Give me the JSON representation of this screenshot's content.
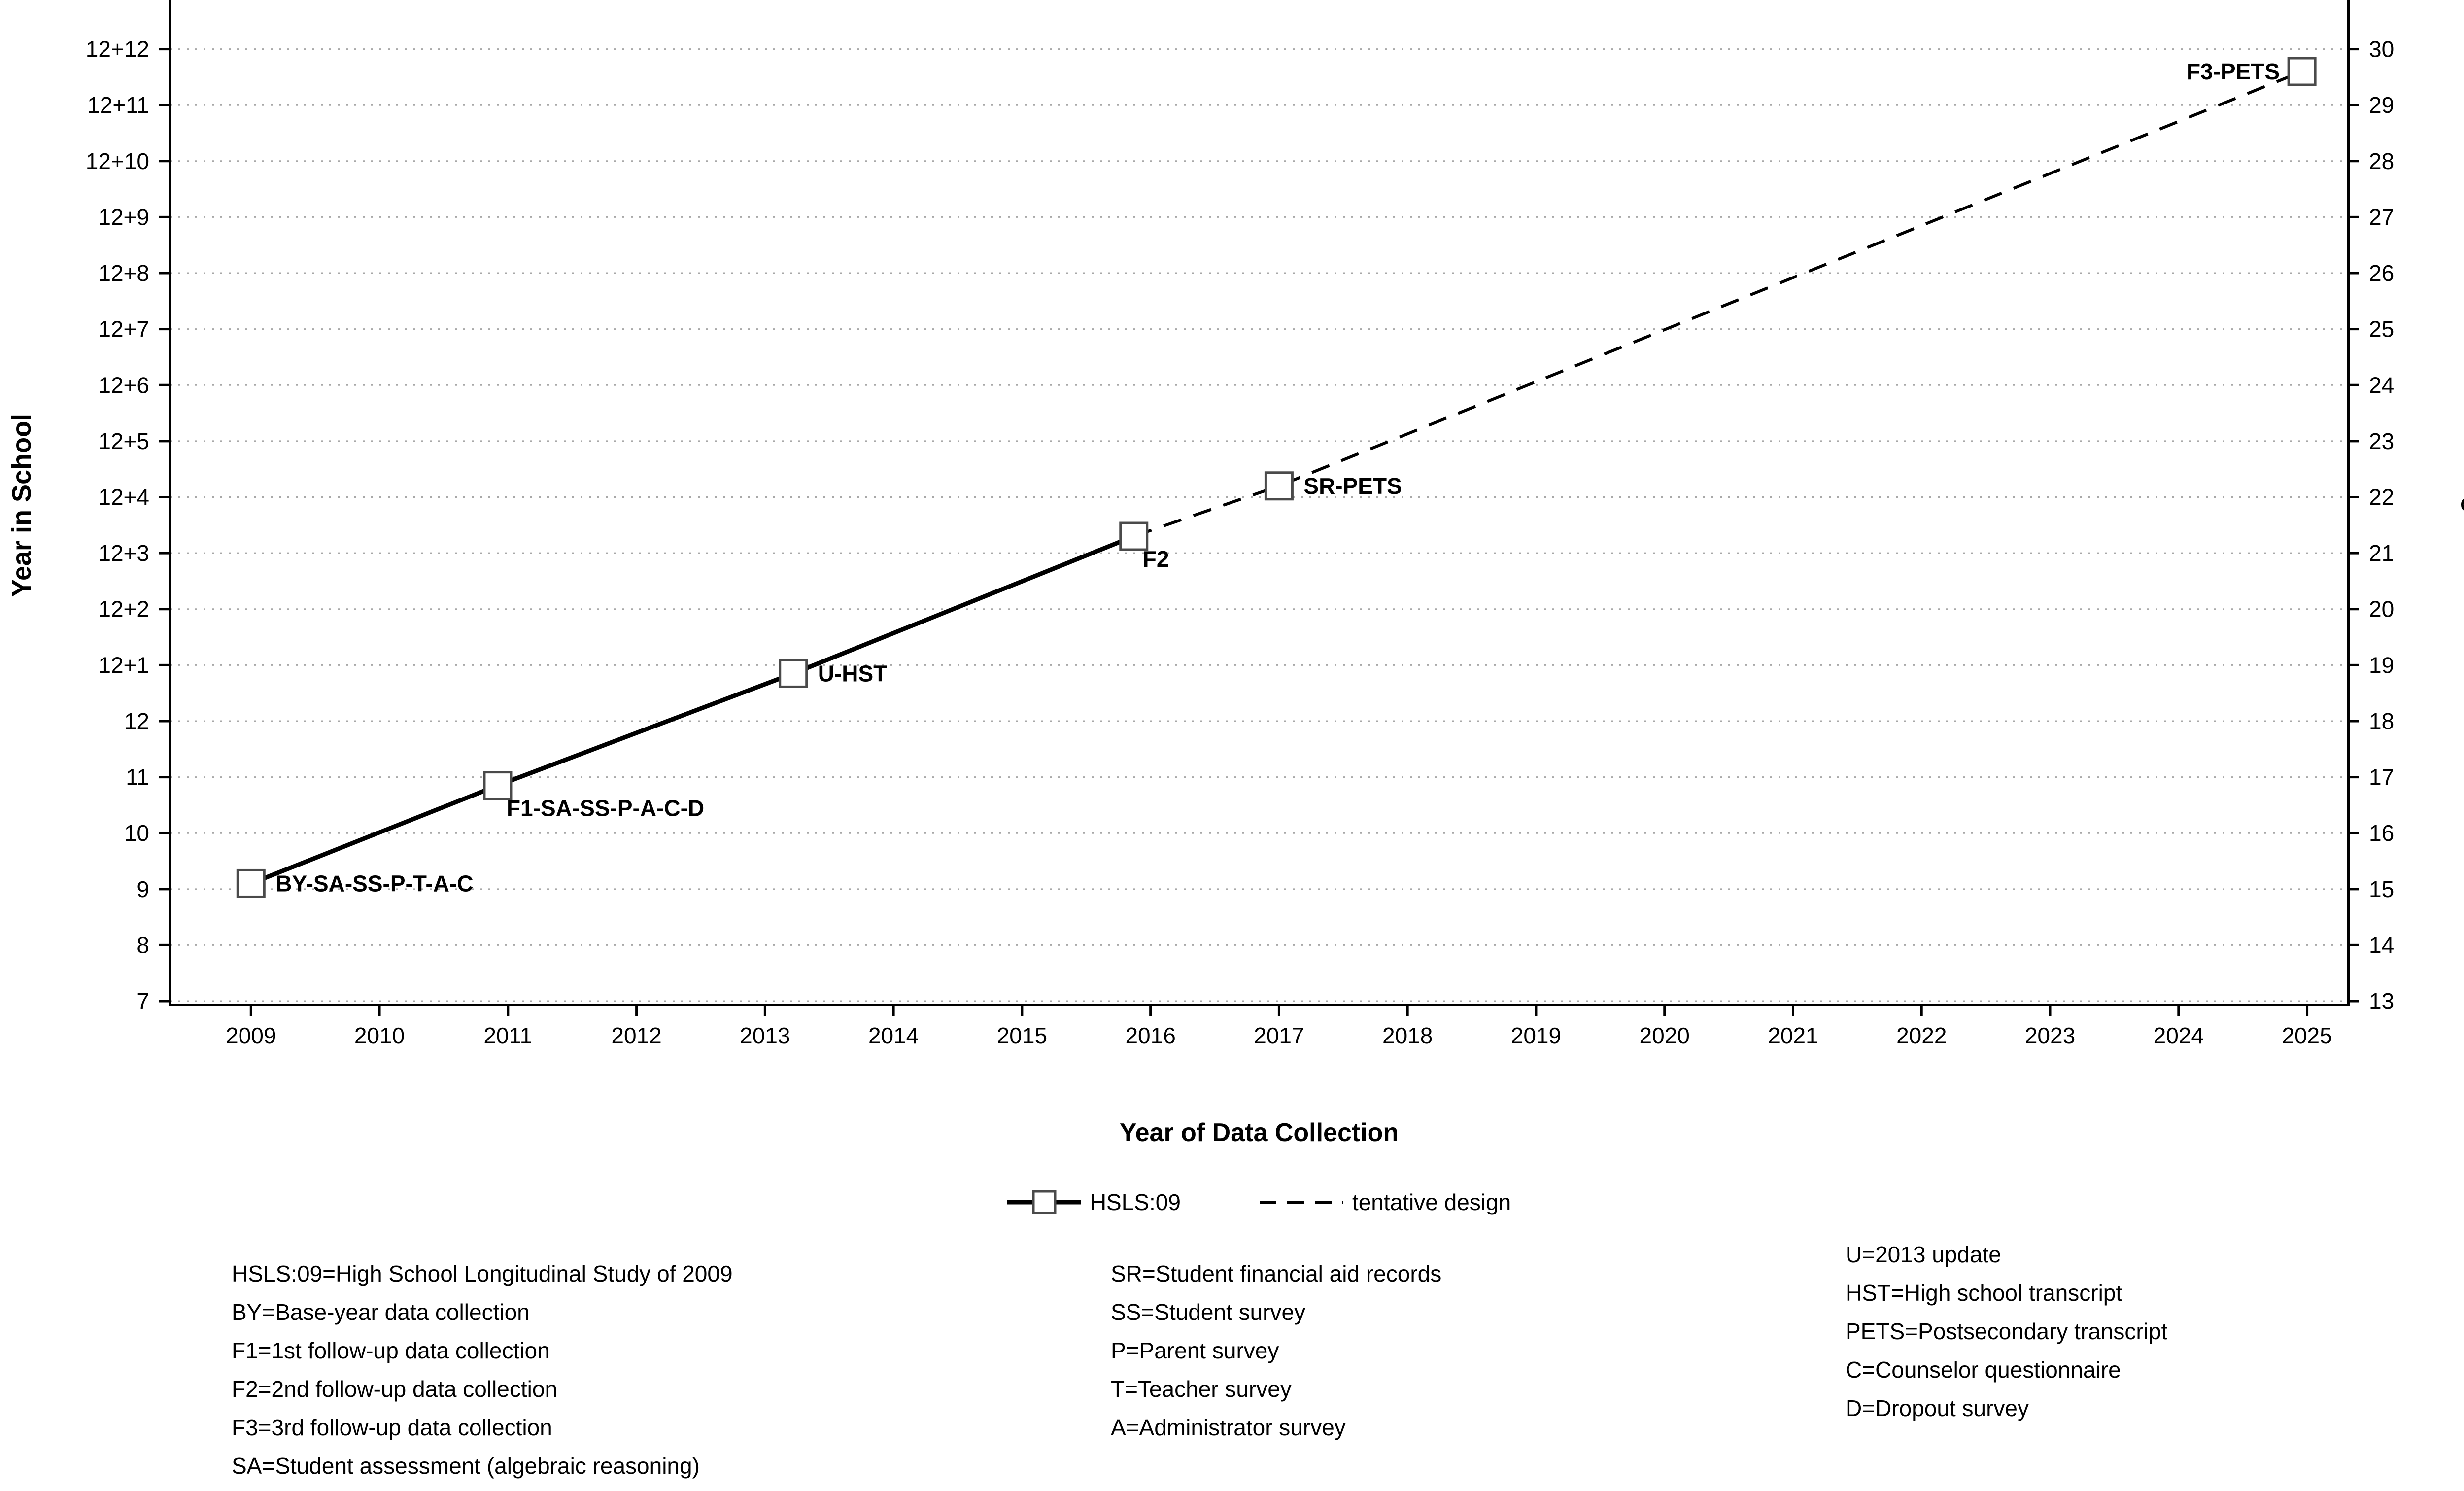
{
  "chart_data": {
    "type": "line",
    "title": "",
    "xlabel": "Year of Data Collection",
    "ylabel_left": "Year in School",
    "ylabel_right": "Age",
    "x_ticks": [
      2009,
      2010,
      2011,
      2012,
      2013,
      2014,
      2015,
      2016,
      2017,
      2018,
      2019,
      2020,
      2021,
      2022,
      2023,
      2024,
      2025
    ],
    "y_ticks": [
      {
        "value": 7,
        "left": "7",
        "right": "13"
      },
      {
        "value": 8,
        "left": "8",
        "right": "14"
      },
      {
        "value": 9,
        "left": "9",
        "right": "15"
      },
      {
        "value": 10,
        "left": "10",
        "right": "16"
      },
      {
        "value": 11,
        "left": "11",
        "right": "17"
      },
      {
        "value": 12,
        "left": "12",
        "right": "18"
      },
      {
        "value": 13,
        "left": "12+1",
        "right": "19"
      },
      {
        "value": 14,
        "left": "12+2",
        "right": "20"
      },
      {
        "value": 15,
        "left": "12+3",
        "right": "21"
      },
      {
        "value": 16,
        "left": "12+4",
        "right": "22"
      },
      {
        "value": 17,
        "left": "12+5",
        "right": "23"
      },
      {
        "value": 18,
        "left": "12+6",
        "right": "24"
      },
      {
        "value": 19,
        "left": "12+7",
        "right": "25"
      },
      {
        "value": 20,
        "left": "12+8",
        "right": "26"
      },
      {
        "value": 21,
        "left": "12+9",
        "right": "27"
      },
      {
        "value": 22,
        "left": "12+10",
        "right": "28"
      },
      {
        "value": 23,
        "left": "12+11",
        "right": "29"
      },
      {
        "value": 24,
        "left": "12+12",
        "right": "30"
      }
    ],
    "x_domain": [
      2008.37,
      2025.32
    ],
    "y_domain": [
      6.93,
      24.85
    ],
    "grid": "dotted-horizontal",
    "series": [
      {
        "name": "HSLS:09",
        "style": "solid",
        "points": [
          [
            2009.0,
            9.1
          ],
          [
            2010.92,
            10.85
          ],
          [
            2013.22,
            12.85
          ],
          [
            2015.87,
            15.3
          ]
        ]
      },
      {
        "name": "tentative design",
        "style": "dashed",
        "points": [
          [
            2015.87,
            15.3
          ],
          [
            2017.0,
            16.2
          ],
          [
            2024.96,
            23.6
          ]
        ]
      }
    ],
    "markers": [
      {
        "x": 2009.0,
        "y": 9.1,
        "label": "BY-SA-SS-P-T-A-C",
        "label_pos": "right"
      },
      {
        "x": 2010.92,
        "y": 10.85,
        "label": "F1-SA-SS-P-A-C-D",
        "label_pos": "below-right"
      },
      {
        "x": 2013.22,
        "y": 12.85,
        "label": "U-HST",
        "label_pos": "right"
      },
      {
        "x": 2015.87,
        "y": 15.3,
        "label": "F2",
        "label_pos": "below-right"
      },
      {
        "x": 2017.0,
        "y": 16.2,
        "label": "SR-PETS",
        "label_pos": "right"
      },
      {
        "x": 2024.96,
        "y": 23.6,
        "label": "F3-PETS",
        "label_pos": "left"
      }
    ],
    "legend": [
      {
        "label": "HSLS:09",
        "style": "solid-square"
      },
      {
        "label": "tentative design",
        "style": "dashed"
      }
    ],
    "colors": {
      "line": "#000000",
      "marker_fill": "#ffffff",
      "marker_stroke": "#4a4a4a",
      "grid": "#a8a8a8",
      "axis": "#000000",
      "text": "#000000"
    }
  },
  "definitions": {
    "col1": [
      "HSLS:09=High School Longitudinal Study of 2009",
      "BY=Base-year data collection",
      "F1=1st follow-up data collection",
      "F2=2nd follow-up data collection",
      "F3=3rd follow-up data collection",
      "SA=Student assessment (algebraic reasoning)"
    ],
    "col2": [
      "SR=Student financial aid records",
      "SS=Student survey",
      "P=Parent survey",
      "T=Teacher survey",
      "A=Administrator survey"
    ],
    "col3": [
      "U=2013 update",
      "HST=High school transcript",
      "PETS=Postsecondary transcript",
      "C=Counselor questionnaire",
      "D=Dropout survey"
    ]
  }
}
